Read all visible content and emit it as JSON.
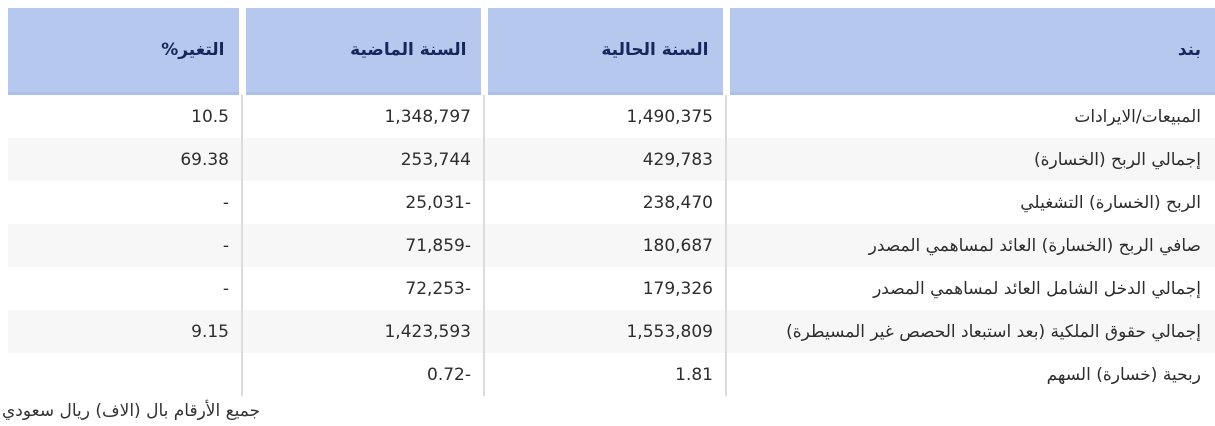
{
  "colors": {
    "header_bg": "#b7c8ee",
    "header_text": "#18275b",
    "positive_value": "#1aa75b",
    "negative_value": "#d7434e",
    "row_stripe": "#f7f7f7",
    "body_text": "#2d2d2d"
  },
  "table": {
    "columns": [
      {
        "key": "item",
        "label": "بند"
      },
      {
        "key": "current_year",
        "label": "السنة الحالية"
      },
      {
        "key": "previous_year",
        "label": "السنة الماضية"
      },
      {
        "key": "change_pct",
        "label": "التغير%"
      }
    ],
    "rows": [
      {
        "item": "المبيعات/الايرادات",
        "current_year": "1,490,375",
        "previous_year": "1,348,797",
        "change_pct": "10.5"
      },
      {
        "item": "إجمالي الربح (الخسارة)",
        "current_year": "429,783",
        "previous_year": "253,744",
        "change_pct": "69.38"
      },
      {
        "item": "الربح (الخسارة) التشغيلي",
        "current_year": "238,470",
        "previous_year": "-25,031",
        "change_pct": "-"
      },
      {
        "item": "صافي الربح (الخسارة) العائد لمساهمي المصدر",
        "current_year": "180,687",
        "previous_year": "-71,859",
        "change_pct": "-"
      },
      {
        "item": "إجمالي الدخل الشامل العائد لمساهمي المصدر",
        "current_year": "179,326",
        "previous_year": "-72,253",
        "change_pct": "-"
      },
      {
        "item": "إجمالي حقوق الملكية (بعد استبعاد الحصص غير المسيطرة)",
        "current_year": "1,553,809",
        "previous_year": "1,423,593",
        "change_pct": "9.15"
      },
      {
        "item": "ربحية (خسارة) السهم",
        "current_year": "1.81",
        "previous_year": "-0.72",
        "change_pct": ""
      }
    ]
  },
  "footer": {
    "note": "جميع الأرقام بال (الاف) ريال سعودي"
  }
}
